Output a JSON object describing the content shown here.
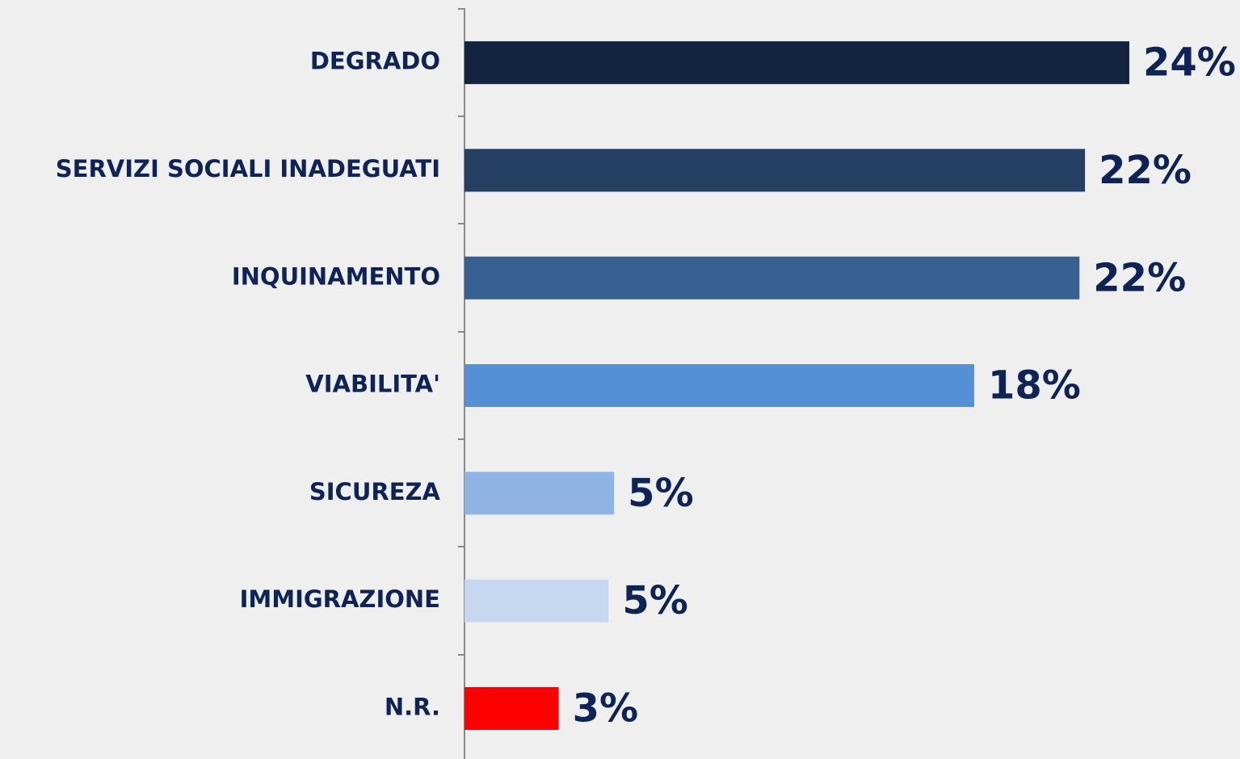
{
  "chart_data": {
    "type": "bar",
    "orientation": "horizontal",
    "categories": [
      "DEGRADO",
      "SERVIZI SOCIALI INADEGUATI",
      "INQUINAMENTO",
      "VIABILITA'",
      "SICUREZA",
      "IMMIGRAZIONE",
      "N.R."
    ],
    "values": [
      24.0,
      22.4,
      22.2,
      18.4,
      5.4,
      5.2,
      3.4
    ],
    "value_labels": [
      "24%",
      "22%",
      "22%",
      "18%",
      "5%",
      "5%",
      "3%"
    ],
    "colors": [
      "#12243f",
      "#243f61",
      "#36608f",
      "#558fd6",
      "#8fb4e3",
      "#c6d8f0",
      "#ff0000"
    ]
  }
}
